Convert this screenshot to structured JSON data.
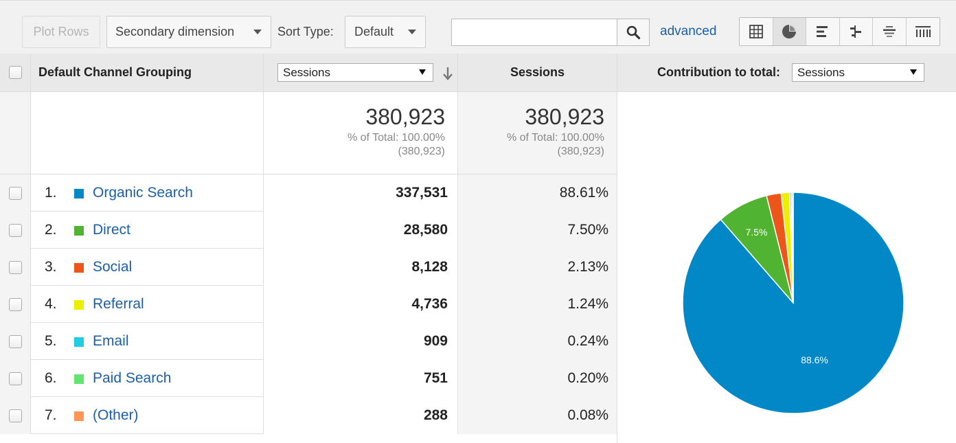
{
  "toolbar": {
    "plot_rows_label": "Plot Rows",
    "secondary_dimension_label": "Secondary dimension",
    "sort_type_label": "Sort Type:",
    "sort_type_value": "Default",
    "search_value": "",
    "advanced_label": "advanced",
    "views": [
      "table-icon",
      "pie-icon",
      "bar-icon",
      "comparison-icon",
      "term-cloud-icon",
      "pivot-icon"
    ],
    "active_view": "pie"
  },
  "header": {
    "dimension": "Default Channel Grouping",
    "metric_select": "Sessions",
    "metric_label": "Sessions",
    "contribution_label": "Contribution to total:",
    "contribution_select": "Sessions"
  },
  "totals": {
    "primary_value": "380,923",
    "primary_pct": "% of Total: 100.00%",
    "primary_abs": "(380,923)",
    "secondary_value": "380,923",
    "secondary_pct": "% of Total: 100.00%",
    "secondary_abs": "(380,923)"
  },
  "rows": [
    {
      "index": "1.",
      "name": "Organic Search",
      "color": "#0288c7",
      "sessions": "337,531",
      "pct": "88.61%"
    },
    {
      "index": "2.",
      "name": "Direct",
      "color": "#50b432",
      "sessions": "28,580",
      "pct": "7.50%"
    },
    {
      "index": "3.",
      "name": "Social",
      "color": "#ed561b",
      "sessions": "8,128",
      "pct": "2.13%"
    },
    {
      "index": "4.",
      "name": "Referral",
      "color": "#edef00",
      "sessions": "4,736",
      "pct": "1.24%"
    },
    {
      "index": "5.",
      "name": "Email",
      "color": "#24cbe5",
      "sessions": "909",
      "pct": "0.24%"
    },
    {
      "index": "6.",
      "name": "Paid Search",
      "color": "#64e572",
      "sessions": "751",
      "pct": "0.20%"
    },
    {
      "index": "7.",
      "name": "(Other)",
      "color": "#ff9655",
      "sessions": "288",
      "pct": "0.08%"
    }
  ],
  "chart_data": {
    "type": "pie",
    "categories": [
      "Organic Search",
      "Direct",
      "Social",
      "Referral",
      "Email",
      "Paid Search",
      "(Other)"
    ],
    "values": [
      337531,
      28580,
      8128,
      4736,
      909,
      751,
      288
    ],
    "colors": [
      "#0288c7",
      "#50b432",
      "#ed561b",
      "#edef00",
      "#24cbe5",
      "#64e572",
      "#ff9655"
    ],
    "data_labels": [
      "88.6%",
      "7.5%",
      "",
      "",
      "",
      "",
      ""
    ]
  }
}
